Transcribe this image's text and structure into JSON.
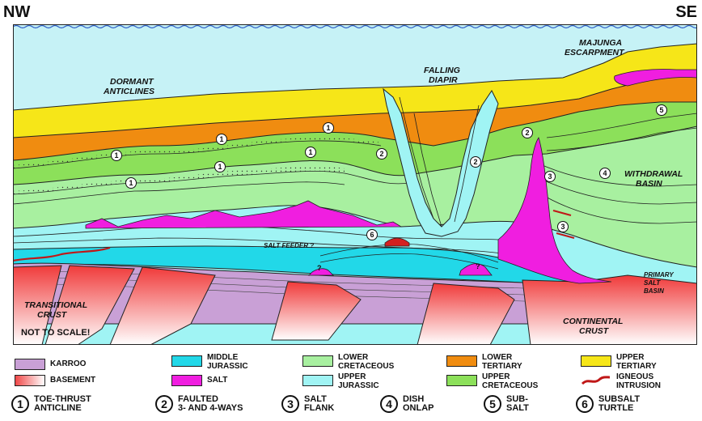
{
  "directions": {
    "left": "NW",
    "right": "SE"
  },
  "labels": {
    "dormant_anticlines_1": "DORMANT",
    "dormant_anticlines_2": "ANTICLINES",
    "falling_diapir_1": "FALLING",
    "falling_diapir_2": "DIAPIR",
    "majunga_1": "MAJUNGA",
    "majunga_2": "ESCARPMENT",
    "withdrawal_1": "WITHDRAWAL",
    "withdrawal_2": "BASIN",
    "salt_feeder": "SALT FEEDER ?",
    "primary_salt_1": "PRIMARY",
    "primary_salt_2": "SALT",
    "primary_salt_3": "BASIN",
    "transitional_1": "TRANSITIONAL",
    "transitional_2": "CRUST",
    "continental_1": "CONTINENTAL",
    "continental_2": "CRUST",
    "not_to_scale": "NOT TO SCALE!",
    "question": "?"
  },
  "legend": {
    "karroo": {
      "label": "KARROO",
      "color": "#c9a0d6"
    },
    "basement": {
      "label": "BASEMENT",
      "color": "#f04848"
    },
    "middle_jurassic": {
      "label1": "MIDDLE",
      "label2": "JURASSIC",
      "color": "#22d8e8"
    },
    "salt": {
      "label": "SALT",
      "color": "#f01ee0"
    },
    "lower_cretaceous": {
      "label1": "LOWER",
      "label2": "CRETACEOUS",
      "color": "#a8f0a0"
    },
    "upper_jurassic": {
      "label1": "UPPER",
      "label2": "JURASSIC",
      "color": "#a0f4f4"
    },
    "lower_tertiary": {
      "label1": "LOWER",
      "label2": "TERTIARY",
      "color": "#f08c10"
    },
    "upper_cretaceous": {
      "label1": "UPPER",
      "label2": "CRETACEOUS",
      "color": "#8ce05a"
    },
    "upper_tertiary": {
      "label1": "UPPER",
      "label2": "TERTIARY",
      "color": "#f6e618"
    },
    "igneous_intrusion": {
      "label1": "IGNEOUS",
      "label2": "INTRUSION",
      "color": "#c01818"
    }
  },
  "play_types": [
    {
      "num": "1",
      "line1": "TOE-THRUST",
      "line2": "ANTICLINE"
    },
    {
      "num": "2",
      "line1": "FAULTED",
      "line2": "3- AND 4-WAYS"
    },
    {
      "num": "3",
      "line1": "SALT",
      "line2": "FLANK"
    },
    {
      "num": "4",
      "line1": "DISH",
      "line2": "ONLAP"
    },
    {
      "num": "5",
      "line1": "SUB-",
      "line2": "SALT"
    },
    {
      "num": "6",
      "line1": "SUBSALT",
      "line2": "TURTLE"
    }
  ],
  "markers": [
    "1",
    "1",
    "1",
    "1",
    "1",
    "1",
    "2",
    "2",
    "2",
    "3",
    "3",
    "4",
    "5",
    "6"
  ],
  "colors": {
    "sea": "#c6f2f6",
    "frame": "#222222"
  }
}
